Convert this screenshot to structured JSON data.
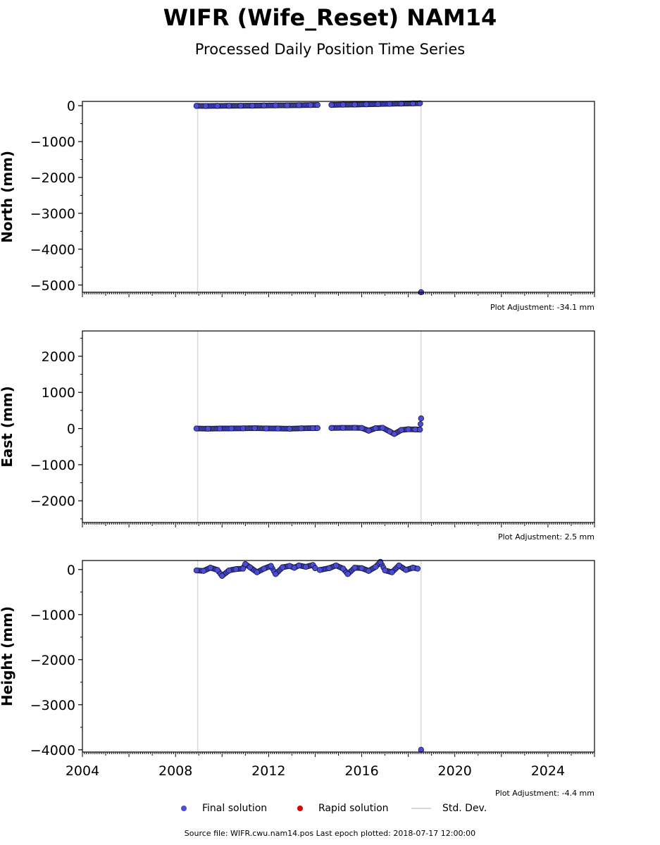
{
  "title": "WIFR (Wife_Reset) NAM14",
  "subtitle": "Processed Daily Position Time Series",
  "source_note": "Source file: WIFR.cwu.nam14.pos  Last epoch plotted: 2018-07-17 12:00:00",
  "legend": [
    {
      "label": "Final solution",
      "color": "#4b4bdc",
      "kind": "marker"
    },
    {
      "label": "Rapid solution",
      "color": "#dd0000",
      "kind": "marker"
    },
    {
      "label": "Std. Dev.",
      "color": "#d8d8d8",
      "kind": "line"
    }
  ],
  "colors": {
    "final": "#4b4bdc",
    "marker_edge": "#1a1a3a",
    "stddev": "#d8d8d8"
  },
  "chart_data": [
    {
      "type": "scatter",
      "ylabel": "North (mm)",
      "xlim": [
        2004,
        2026
      ],
      "ylim": [
        -5200,
        120
      ],
      "yticks": [
        0,
        -1000,
        -2000,
        -3000,
        -4000,
        -5000
      ],
      "adjustment": "Plot Adjustment: -34.1 mm",
      "series": [
        {
          "name": "Final solution",
          "x": [
            2008.9,
            2009.3,
            2009.8,
            2010.3,
            2010.8,
            2011.3,
            2011.8,
            2012.3,
            2012.8,
            2013.3,
            2013.8,
            2014.1,
            2014.7,
            2015.2,
            2015.7,
            2016.2,
            2016.7,
            2017.2,
            2017.7,
            2018.2,
            2018.5,
            2018.55
          ],
          "y": [
            -5,
            -8,
            -5,
            -3,
            -2,
            0,
            5,
            8,
            10,
            14,
            18,
            20,
            22,
            28,
            32,
            38,
            45,
            52,
            58,
            64,
            68,
            -5200
          ]
        }
      ],
      "stddev_x": [
        2008.95,
        2018.55
      ]
    },
    {
      "type": "scatter",
      "ylabel": "East (mm)",
      "xlim": [
        2004,
        2026
      ],
      "ylim": [
        -2600,
        2700
      ],
      "yticks": [
        2000,
        1000,
        0,
        -1000,
        -2000
      ],
      "adjustment": "Plot Adjustment: 2.5 mm",
      "series": [
        {
          "name": "Final solution",
          "x": [
            2008.9,
            2009.4,
            2009.9,
            2010.4,
            2010.9,
            2011.4,
            2011.9,
            2012.4,
            2012.9,
            2013.4,
            2013.9,
            2014.1,
            2014.7,
            2015.2,
            2015.7,
            2016.0,
            2016.3,
            2016.6,
            2016.9,
            2017.2,
            2017.4,
            2017.7,
            2018.0,
            2018.3,
            2018.5,
            2018.55
          ],
          "y": [
            0,
            -5,
            0,
            2,
            5,
            10,
            3,
            0,
            -5,
            5,
            10,
            12,
            15,
            18,
            20,
            15,
            -60,
            10,
            20,
            -80,
            -150,
            -40,
            -20,
            -25,
            -30,
            280
          ]
        }
      ],
      "stddev_x": [
        2008.95,
        2018.55
      ]
    },
    {
      "type": "scatter",
      "ylabel": "Height (mm)",
      "xlim": [
        2004,
        2026
      ],
      "ylim": [
        -4050,
        200
      ],
      "yticks": [
        0,
        -1000,
        -2000,
        -3000,
        -4000
      ],
      "xticks": [
        2004,
        2008,
        2012,
        2016,
        2020,
        2024
      ],
      "adjustment": "Plot Adjustment: -4.4 mm",
      "series": [
        {
          "name": "Final solution",
          "x": [
            2008.9,
            2009.2,
            2009.5,
            2009.8,
            2010.0,
            2010.3,
            2010.6,
            2010.9,
            2011.0,
            2011.2,
            2011.5,
            2011.8,
            2012.1,
            2012.3,
            2012.6,
            2012.9,
            2013.1,
            2013.3,
            2013.6,
            2013.9,
            2014.0,
            2014.2,
            2014.6,
            2014.9,
            2015.2,
            2015.4,
            2015.7,
            2016.0,
            2016.3,
            2016.6,
            2016.8,
            2017.0,
            2017.3,
            2017.6,
            2017.9,
            2018.2,
            2018.4,
            2018.55
          ],
          "y": [
            -20,
            -30,
            40,
            -10,
            -140,
            -20,
            10,
            20,
            120,
            50,
            -60,
            20,
            80,
            -100,
            50,
            80,
            40,
            90,
            60,
            100,
            30,
            -10,
            30,
            90,
            20,
            -100,
            40,
            30,
            -30,
            60,
            170,
            -20,
            -60,
            90,
            -10,
            40,
            20,
            -4000
          ]
        }
      ],
      "stddev_x": [
        2008.95,
        2018.55
      ]
    }
  ]
}
